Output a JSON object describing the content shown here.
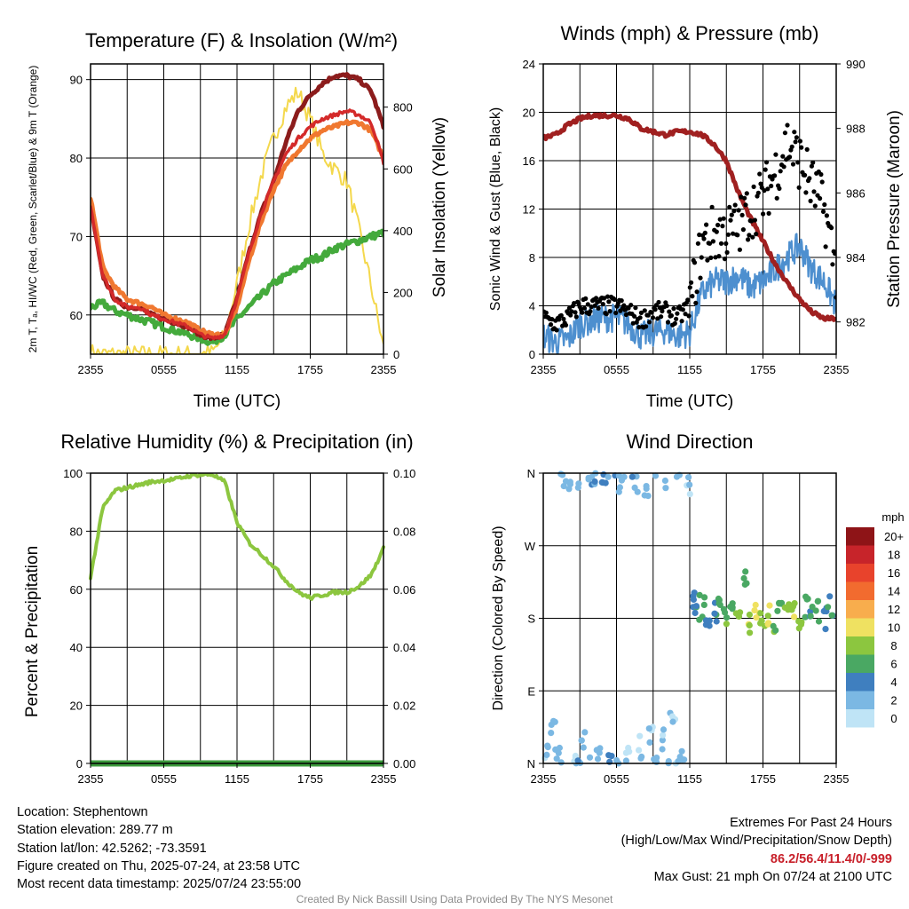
{
  "chart_data": [
    {
      "type": "line",
      "title": "Temperature (F) & Insolation (W/m²)",
      "xlabel": "Time (UTC)",
      "ylabel_left": "2m T, Tₐ, HI/WC (Red, Green, Scarlet/Blue) & 9m T (Orange)",
      "ylabel_right": "Solar Insolation (Yellow)",
      "x_ticks": [
        "2355",
        "0555",
        "1155",
        "1755",
        "2355"
      ],
      "ylim_left": [
        55,
        92
      ],
      "yticks_left": [
        60,
        70,
        80,
        90
      ],
      "ylim_right": [
        0,
        940
      ],
      "yticks_right": [
        0,
        200,
        400,
        600,
        800
      ],
      "x_hours_since_2355": [
        0,
        1,
        2,
        3,
        4,
        5,
        6,
        7,
        8,
        9,
        10,
        11,
        12,
        13,
        14,
        15,
        16,
        17,
        18,
        19,
        20,
        21,
        22,
        23,
        24
      ],
      "series": [
        {
          "name": "2m T",
          "color": "#d42a2a",
          "axis": "left",
          "values": [
            74,
            65,
            62,
            61,
            61,
            60,
            59.5,
            59,
            58.5,
            57.5,
            57,
            57.5,
            62,
            68,
            73,
            77,
            80.5,
            82.5,
            84,
            85,
            85.5,
            86,
            85.5,
            84.5,
            79.5
          ]
        },
        {
          "name": "2m Td",
          "color": "#44aa3c",
          "axis": "left",
          "values": [
            61,
            61.5,
            60.5,
            60,
            59.5,
            59,
            58.5,
            58,
            57.5,
            57,
            56.5,
            57.5,
            59.5,
            61,
            62.5,
            64,
            65,
            66,
            67,
            67.5,
            68.5,
            69,
            69.5,
            70,
            70.5
          ]
        },
        {
          "name": "HI/WC",
          "color": "#8c1c1c",
          "axis": "left",
          "values": [
            74,
            65,
            62,
            61,
            61,
            60,
            59.5,
            59,
            58.5,
            57.5,
            57,
            57.5,
            62,
            68,
            73,
            77,
            82,
            86,
            88,
            89.5,
            90.5,
            90.5,
            90,
            88.5,
            84
          ]
        },
        {
          "name": "9m T",
          "color": "#f07830",
          "axis": "left",
          "values": [
            75,
            66,
            63.5,
            62,
            61.5,
            61,
            60,
            59.5,
            59,
            58,
            57.5,
            57.5,
            61,
            67,
            72,
            76,
            79,
            81,
            82.5,
            83.5,
            84,
            84.5,
            84.5,
            83.5,
            80
          ]
        },
        {
          "name": "Solar Insolation",
          "color": "#f4d84c",
          "axis": "right",
          "values": [
            5,
            0,
            0,
            0,
            0,
            0,
            0,
            0,
            0,
            0,
            5,
            60,
            230,
            420,
            580,
            700,
            800,
            850,
            760,
            650,
            600,
            560,
            400,
            220,
            20
          ]
        }
      ]
    },
    {
      "type": "scatter",
      "title": "Winds (mph) & Pressure (mb)",
      "xlabel": "Time (UTC)",
      "ylabel_left": "Sonic Wind & Gust (Blue, Black)",
      "ylabel_right": "Station Pressure (Maroon)",
      "x_ticks": [
        "2355",
        "0555",
        "1155",
        "1755",
        "2355"
      ],
      "ylim_left": [
        0,
        24
      ],
      "yticks_left": [
        0,
        4,
        8,
        12,
        16,
        20,
        24
      ],
      "ylim_right": [
        981,
        990
      ],
      "yticks_right": [
        982,
        984,
        986,
        988,
        990
      ],
      "x_hours_since_2355": [
        0,
        1,
        2,
        3,
        4,
        5,
        6,
        7,
        8,
        9,
        10,
        11,
        12,
        13,
        14,
        15,
        16,
        17,
        18,
        19,
        20,
        21,
        22,
        23,
        24
      ],
      "series": [
        {
          "name": "Sonic Wind",
          "color": "#4d8fcf",
          "axis": "left",
          "values": [
            1.5,
            1,
            1.2,
            2.5,
            2.8,
            3,
            3,
            2.5,
            1.5,
            1.8,
            2,
            1.5,
            1.8,
            5,
            6,
            6,
            6.5,
            5.5,
            6,
            7,
            8,
            9,
            7,
            6,
            4
          ]
        },
        {
          "name": "Gust",
          "color": "#000000",
          "axis": "left",
          "values": [
            3,
            2.5,
            3,
            4,
            4,
            4,
            4,
            3.5,
            2.8,
            3.5,
            3.5,
            3,
            4,
            9,
            10,
            10,
            10.5,
            12,
            13,
            15,
            17.5,
            16,
            14,
            12,
            7
          ]
        },
        {
          "name": "Station Pressure",
          "color": "#a02020",
          "axis": "right",
          "values": [
            987.7,
            987.8,
            988.1,
            988.3,
            988.4,
            988.4,
            988.4,
            988.3,
            988.0,
            987.9,
            987.8,
            987.9,
            987.9,
            987.8,
            987.5,
            987.0,
            986.0,
            985.2,
            984.5,
            983.8,
            983.2,
            982.7,
            982.3,
            982.1,
            982.1
          ]
        }
      ]
    },
    {
      "type": "line",
      "title": "Relative Humidity (%) & Precipitation (in)",
      "xlabel": "",
      "ylabel_left": "Percent & Precipitation",
      "ylabel_right": "",
      "x_ticks": [
        "2355",
        "0555",
        "1155",
        "1755",
        "2355"
      ],
      "ylim_left": [
        0,
        100
      ],
      "yticks_left": [
        0,
        20,
        40,
        60,
        80,
        100
      ],
      "ylim_right": [
        0,
        0.1
      ],
      "yticks_right": [
        "0.00",
        "0.02",
        "0.04",
        "0.06",
        "0.08",
        "0.10"
      ],
      "x_hours_since_2355": [
        0,
        1,
        2,
        3,
        4,
        5,
        6,
        7,
        8,
        9,
        10,
        11,
        12,
        13,
        14,
        15,
        16,
        17,
        18,
        19,
        20,
        21,
        22,
        23,
        24
      ],
      "series": [
        {
          "name": "Relative Humidity",
          "color": "#8cc63f",
          "axis": "left",
          "values": [
            64,
            88,
            94,
            95,
            96,
            97,
            97.5,
            98,
            99,
            99.5,
            99.5,
            97,
            83,
            76,
            72,
            68,
            63,
            59,
            57,
            58,
            59,
            59,
            61,
            65,
            74
          ]
        },
        {
          "name": "Precipitation",
          "color": "#3c9a3c",
          "axis": "right",
          "values": [
            0,
            0,
            0,
            0,
            0,
            0,
            0,
            0,
            0,
            0,
            0,
            0,
            0,
            0,
            0,
            0,
            0,
            0,
            0,
            0,
            0,
            0,
            0,
            0,
            0
          ]
        }
      ]
    },
    {
      "type": "scatter",
      "title": "Wind Direction",
      "xlabel": "",
      "ylabel_left": "Direction (Colored By Speed)",
      "x_ticks": [
        "2355",
        "0555",
        "1155",
        "1755",
        "2355"
      ],
      "y_ticks": [
        "N",
        "E",
        "S",
        "W",
        "N"
      ],
      "ylim": [
        0,
        360
      ],
      "legend_title": "mph",
      "legend_labels": [
        "20+",
        "18",
        "16",
        "14",
        "12",
        "10",
        "8",
        "6",
        "4",
        "2",
        "0"
      ],
      "legend_colors": [
        "#8e1417",
        "#c7242a",
        "#e8432c",
        "#f26b2f",
        "#f8ad4d",
        "#efe161",
        "#8cc63f",
        "#4aa863",
        "#3f7fbf",
        "#7bb8e3",
        "#bfe4f6"
      ],
      "points": [
        {
          "x": 0.3,
          "dir": 20,
          "mph": 1
        },
        {
          "x": 0.8,
          "dir": 40,
          "mph": 2
        },
        {
          "x": 1.2,
          "dir": 8,
          "mph": 2
        },
        {
          "x": 1.6,
          "dir": 355,
          "mph": 3
        },
        {
          "x": 2.0,
          "dir": 350,
          "mph": 2
        },
        {
          "x": 2.5,
          "dir": 10,
          "mph": 1
        },
        {
          "x": 3.0,
          "dir": 355,
          "mph": 3
        },
        {
          "x": 3.3,
          "dir": 25,
          "mph": 2
        },
        {
          "x": 3.8,
          "dir": 5,
          "mph": 2
        },
        {
          "x": 4.2,
          "dir": 352,
          "mph": 3
        },
        {
          "x": 4.6,
          "dir": 15,
          "mph": 1
        },
        {
          "x": 5.0,
          "dir": 357,
          "mph": 4
        },
        {
          "x": 5.5,
          "dir": 8,
          "mph": 3
        },
        {
          "x": 6.0,
          "dir": 358,
          "mph": 3
        },
        {
          "x": 6.4,
          "dir": 350,
          "mph": 2
        },
        {
          "x": 7.0,
          "dir": 10,
          "mph": 1
        },
        {
          "x": 7.5,
          "dir": 345,
          "mph": 3
        },
        {
          "x": 8.0,
          "dir": 20,
          "mph": 1
        },
        {
          "x": 8.4,
          "dir": 340,
          "mph": 2
        },
        {
          "x": 8.8,
          "dir": 35,
          "mph": 1
        },
        {
          "x": 9.2,
          "dir": 355,
          "mph": 2
        },
        {
          "x": 9.7,
          "dir": 30,
          "mph": 1
        },
        {
          "x": 10.2,
          "dir": 352,
          "mph": 2
        },
        {
          "x": 10.6,
          "dir": 60,
          "mph": 1
        },
        {
          "x": 11.0,
          "dir": 350,
          "mph": 1
        },
        {
          "x": 11.4,
          "dir": 10,
          "mph": 2
        },
        {
          "x": 11.8,
          "dir": 345,
          "mph": 1
        },
        {
          "x": 12.2,
          "dir": 200,
          "mph": 4
        },
        {
          "x": 12.6,
          "dir": 185,
          "mph": 5
        },
        {
          "x": 13.0,
          "dir": 195,
          "mph": 6
        },
        {
          "x": 13.5,
          "dir": 175,
          "mph": 4
        },
        {
          "x": 14.0,
          "dir": 190,
          "mph": 5
        },
        {
          "x": 14.5,
          "dir": 200,
          "mph": 6
        },
        {
          "x": 15.0,
          "dir": 180,
          "mph": 7
        },
        {
          "x": 15.5,
          "dir": 195,
          "mph": 6
        },
        {
          "x": 16.0,
          "dir": 185,
          "mph": 8
        },
        {
          "x": 16.5,
          "dir": 225,
          "mph": 6
        },
        {
          "x": 17.0,
          "dir": 175,
          "mph": 9
        },
        {
          "x": 17.5,
          "dir": 190,
          "mph": 10
        },
        {
          "x": 18.0,
          "dir": 180,
          "mph": 8
        },
        {
          "x": 18.5,
          "dir": 185,
          "mph": 9
        },
        {
          "x": 19.0,
          "dir": 175,
          "mph": 7
        },
        {
          "x": 19.5,
          "dir": 195,
          "mph": 6
        },
        {
          "x": 20.0,
          "dir": 185,
          "mph": 8
        },
        {
          "x": 20.5,
          "dir": 190,
          "mph": 9
        },
        {
          "x": 21.0,
          "dir": 180,
          "mph": 7
        },
        {
          "x": 21.5,
          "dir": 195,
          "mph": 6
        },
        {
          "x": 22.0,
          "dir": 185,
          "mph": 5
        },
        {
          "x": 22.5,
          "dir": 190,
          "mph": 6
        },
        {
          "x": 23.0,
          "dir": 180,
          "mph": 4
        },
        {
          "x": 23.5,
          "dir": 195,
          "mph": 5
        }
      ]
    }
  ],
  "info": {
    "location": "Location: Stephentown",
    "elevation": "Station elevation: 289.77 m",
    "latlon": "Station lat/lon: 42.5262; -73.3591",
    "created": "Figure created on Thu, 2025-07-24, at 23:58 UTC",
    "recent": "Most recent data timestamp: 2025/07/24 23:55:00"
  },
  "extremes": {
    "title": "Extremes For Past 24 Hours",
    "subtitle": "(High/Low/Max Wind/Precipitation/Snow Depth)",
    "values": "86.2/56.4/11.4/0/-999",
    "gust": "Max Gust: 21 mph On 07/24 at 2100 UTC"
  },
  "credit": "Created By Nick Bassill Using Data Provided By The NYS Mesonet"
}
